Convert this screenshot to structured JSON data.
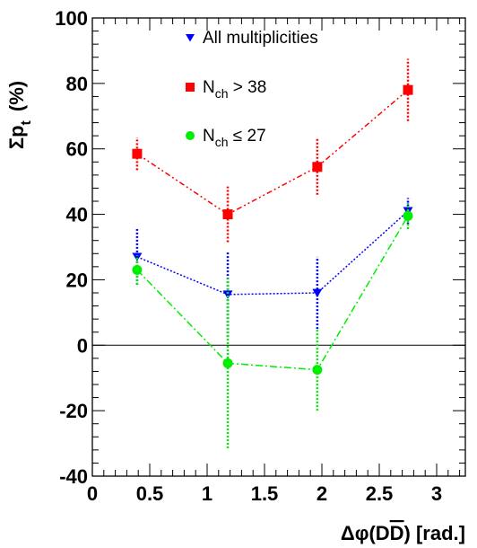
{
  "chart_data": {
    "type": "line",
    "title": "",
    "xlabel": {
      "prefix": "Δφ(D",
      "dbar": "D",
      "suffix": ")  [rad.]"
    },
    "ylabel": {
      "sigma": "Σp",
      "sub": "t",
      "unit": "(%)"
    },
    "xlim": [
      0,
      3.25
    ],
    "ylim": [
      -40,
      100
    ],
    "xticks": [
      0,
      0.5,
      1,
      1.5,
      2,
      2.5,
      3
    ],
    "xtick_labels": [
      "0",
      "0.5",
      "1",
      "1.5",
      "2",
      "2.5",
      "3"
    ],
    "yticks": [
      -40,
      -20,
      0,
      20,
      40,
      60,
      80,
      100
    ],
    "ytick_labels": [
      "-40",
      "-20",
      "0",
      "20",
      "40",
      "60",
      "80",
      "100"
    ],
    "grid": false,
    "legend_position": "top-center",
    "series": [
      {
        "name": "All multiplicities",
        "name_parts": {
          "main": "All multiplicities",
          "sub": "",
          "suffix": ""
        },
        "color": "#0000ff",
        "marker": "triangle-down",
        "line_style": "dotted",
        "x": [
          0.39,
          1.18,
          1.96,
          2.75
        ],
        "y": [
          27,
          15.5,
          16,
          41
        ],
        "err": [
          8.5,
          13,
          11,
          4
        ]
      },
      {
        "name": "N_ch > 38",
        "name_parts": {
          "main": "N",
          "sub": "ch",
          "suffix": " > 38"
        },
        "color": "#ff0000",
        "marker": "square",
        "line_style": "dash-dot-dot",
        "x": [
          0.39,
          1.18,
          1.96,
          2.75
        ],
        "y": [
          58.5,
          40,
          54.5,
          78
        ],
        "err": [
          5,
          8.5,
          8.5,
          9.5
        ]
      },
      {
        "name": "N_ch ≤ 27",
        "name_parts": {
          "main": "N",
          "sub": "ch",
          "suffix": " ≤ 27"
        },
        "color": "#00ee00",
        "marker": "circle",
        "line_style": "dash-dot",
        "x": [
          0.39,
          1.18,
          1.96,
          2.75
        ],
        "y": [
          23,
          -5.5,
          -7.5,
          39.5
        ],
        "err": [
          4.5,
          26,
          12.5,
          4
        ]
      }
    ]
  }
}
